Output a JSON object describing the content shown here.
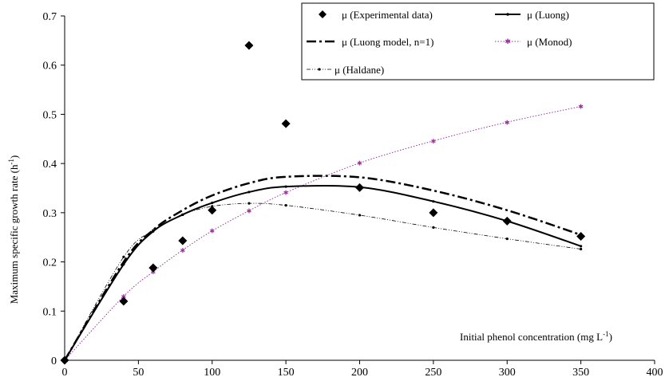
{
  "chart_data": {
    "type": "line",
    "xlabel": "Initial phenol concentration (mg L",
    "xlabel_sup": "-1",
    "xlabel_end": ")",
    "ylabel": "Maximum specific growth rate (h",
    "ylabel_sup": "-1",
    "ylabel_end": ")",
    "xlim": [
      0,
      400
    ],
    "ylim": [
      0,
      0.7
    ],
    "xticks": [
      "0",
      "50",
      "100",
      "150",
      "200",
      "250",
      "300",
      "350",
      "400"
    ],
    "yticks": [
      "0",
      "0.1",
      "0.2",
      "0.3",
      "0.4",
      "0.5",
      "0.6",
      "0.7"
    ],
    "grid": false,
    "legend_position": "top-right",
    "series": [
      {
        "name": "μ (Experimental data)",
        "style": "markers",
        "color": "#000000",
        "points": [
          [
            0,
            0
          ],
          [
            40,
            0.12
          ],
          [
            60,
            0.188
          ],
          [
            80,
            0.243
          ],
          [
            100,
            0.305
          ],
          [
            125,
            0.64
          ],
          [
            150,
            0.481
          ],
          [
            200,
            0.351
          ],
          [
            250,
            0.3
          ],
          [
            300,
            0.283
          ],
          [
            350,
            0.252
          ]
        ]
      },
      {
        "name": "μ (Luong)",
        "style": "solid",
        "color": "#000000",
        "points": [
          [
            0,
            0
          ],
          [
            40,
            0.195
          ],
          [
            60,
            0.262
          ],
          [
            80,
            0.296
          ],
          [
            100,
            0.32
          ],
          [
            125,
            0.342
          ],
          [
            150,
            0.353
          ],
          [
            200,
            0.352
          ],
          [
            250,
            0.323
          ],
          [
            300,
            0.283
          ],
          [
            350,
            0.232
          ]
        ]
      },
      {
        "name": "μ (Luong model, n=1)",
        "style": "dashdot",
        "color": "#000000",
        "points": [
          [
            0,
            0
          ],
          [
            40,
            0.2
          ],
          [
            60,
            0.265
          ],
          [
            80,
            0.305
          ],
          [
            100,
            0.335
          ],
          [
            125,
            0.36
          ],
          [
            150,
            0.373
          ],
          [
            200,
            0.372
          ],
          [
            250,
            0.345
          ],
          [
            300,
            0.305
          ],
          [
            350,
            0.255
          ]
        ]
      },
      {
        "name": "μ (Monod)",
        "style": "dotted",
        "color": "#993399",
        "points": [
          [
            0,
            0
          ],
          [
            40,
            0.13
          ],
          [
            60,
            0.18
          ],
          [
            80,
            0.224
          ],
          [
            100,
            0.263
          ],
          [
            125,
            0.304
          ],
          [
            150,
            0.341
          ],
          [
            200,
            0.401
          ],
          [
            250,
            0.446
          ],
          [
            300,
            0.484
          ],
          [
            350,
            0.516
          ]
        ]
      },
      {
        "name": "μ (Haldane)",
        "style": "dashdotdot",
        "color": "#000000",
        "points": [
          [
            0,
            0
          ],
          [
            40,
            0.21
          ],
          [
            60,
            0.264
          ],
          [
            80,
            0.296
          ],
          [
            100,
            0.313
          ],
          [
            125,
            0.319
          ],
          [
            150,
            0.315
          ],
          [
            200,
            0.295
          ],
          [
            250,
            0.27
          ],
          [
            300,
            0.247
          ],
          [
            350,
            0.226
          ]
        ]
      }
    ]
  }
}
